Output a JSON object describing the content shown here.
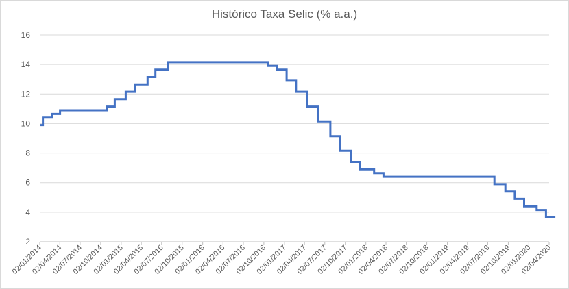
{
  "chart_data": {
    "type": "line",
    "title": "Histórico Taxa Selic (% a.a.)",
    "xlabel": "",
    "ylabel": "",
    "ylim": [
      2,
      16
    ],
    "yticks": [
      2,
      4,
      6,
      8,
      10,
      12,
      14,
      16
    ],
    "grid": "horizontal",
    "legend": "none",
    "line_color": "#4472c4",
    "x_tick_labels": [
      "02/01/2014",
      "02/04/2014",
      "02/07/2014",
      "02/10/2014",
      "02/01/2015",
      "02/04/2015",
      "02/07/2015",
      "02/10/2015",
      "02/01/2016",
      "02/04/2016",
      "02/07/2016",
      "02/10/2016",
      "02/01/2017",
      "02/04/2017",
      "02/07/2017",
      "02/10/2017",
      "02/01/2018",
      "02/04/2018",
      "02/07/2018",
      "02/10/2018",
      "02/01/2019",
      "02/04/2019",
      "02/07/2019",
      "02/10/2019",
      "02/01/2020",
      "02/04/2020"
    ],
    "series": [
      {
        "step": true,
        "points": [
          {
            "x": "2014-01-02",
            "y": 9.9
          },
          {
            "x": "2014-01-16",
            "y": 10.4
          },
          {
            "x": "2014-02-27",
            "y": 10.65
          },
          {
            "x": "2014-04-03",
            "y": 10.9
          },
          {
            "x": "2014-10-30",
            "y": 11.15
          },
          {
            "x": "2014-12-04",
            "y": 11.65
          },
          {
            "x": "2015-01-22",
            "y": 12.15
          },
          {
            "x": "2015-03-05",
            "y": 12.65
          },
          {
            "x": "2015-04-30",
            "y": 13.15
          },
          {
            "x": "2015-06-04",
            "y": 13.65
          },
          {
            "x": "2015-07-30",
            "y": 14.15
          },
          {
            "x": "2016-10-20",
            "y": 13.9
          },
          {
            "x": "2016-12-01",
            "y": 13.65
          },
          {
            "x": "2017-01-12",
            "y": 12.9
          },
          {
            "x": "2017-02-23",
            "y": 12.15
          },
          {
            "x": "2017-04-13",
            "y": 11.15
          },
          {
            "x": "2017-06-01",
            "y": 10.15
          },
          {
            "x": "2017-07-27",
            "y": 9.15
          },
          {
            "x": "2017-09-07",
            "y": 8.15
          },
          {
            "x": "2017-10-26",
            "y": 7.4
          },
          {
            "x": "2017-12-07",
            "y": 6.9
          },
          {
            "x": "2018-02-08",
            "y": 6.65
          },
          {
            "x": "2018-03-22",
            "y": 6.4
          },
          {
            "x": "2019-08-01",
            "y": 5.9
          },
          {
            "x": "2019-09-19",
            "y": 5.4
          },
          {
            "x": "2019-10-31",
            "y": 4.9
          },
          {
            "x": "2019-12-12",
            "y": 4.4
          },
          {
            "x": "2020-02-06",
            "y": 4.15
          },
          {
            "x": "2020-03-19",
            "y": 3.65
          },
          {
            "x": "2020-04-30",
            "y": 3.65
          }
        ]
      }
    ]
  }
}
